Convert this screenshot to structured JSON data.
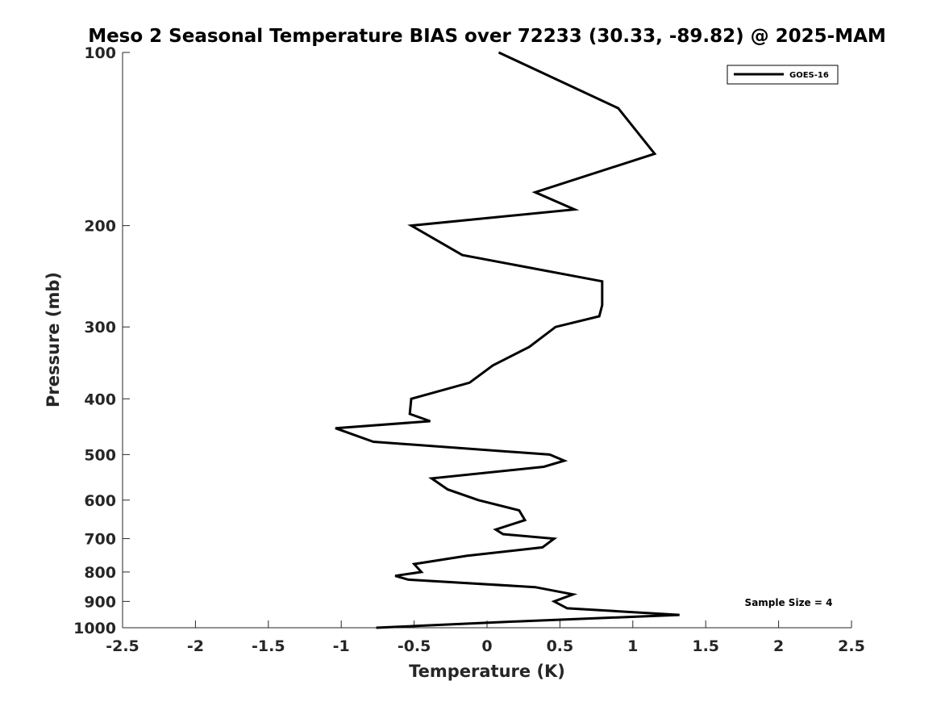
{
  "chart_data": {
    "type": "line",
    "title": "Meso 2 Seasonal Temperature BIAS over 72233 (30.33, -89.82) @ 2025-MAM",
    "xlabel": "Temperature (K)",
    "ylabel": "Pressure (mb)",
    "xlim": [
      -2.5,
      2.5
    ],
    "ylim": [
      100,
      1000
    ],
    "yscale": "log",
    "y_reversed": true,
    "xticks": [
      -2.5,
      -2,
      -1.5,
      -1,
      -0.5,
      0,
      0.5,
      1,
      1.5,
      2,
      2.5
    ],
    "xtick_labels": [
      "-2.5",
      "-2",
      "-1.5",
      "-1",
      "-0.5",
      "0",
      "0.5",
      "1",
      "1.5",
      "2",
      "2.5"
    ],
    "yticks": [
      100,
      200,
      300,
      400,
      500,
      600,
      700,
      800,
      900,
      1000
    ],
    "ytick_labels": [
      "100",
      "200",
      "300",
      "400",
      "500",
      "600",
      "700",
      "800",
      "900",
      "1000"
    ],
    "grid": false,
    "legend_position": "top-right",
    "series": [
      {
        "name": "GOES-16",
        "color": "#000000",
        "points": [
          {
            "x": 0.08,
            "p": 100
          },
          {
            "x": 0.9,
            "p": 125
          },
          {
            "x": 1.15,
            "p": 150
          },
          {
            "x": 0.33,
            "p": 175
          },
          {
            "x": 0.6,
            "p": 187.5
          },
          {
            "x": -0.52,
            "p": 200
          },
          {
            "x": -0.17,
            "p": 225
          },
          {
            "x": 0.79,
            "p": 250
          },
          {
            "x": 0.79,
            "p": 275
          },
          {
            "x": 0.77,
            "p": 287.5
          },
          {
            "x": 0.47,
            "p": 300
          },
          {
            "x": 0.29,
            "p": 325
          },
          {
            "x": 0.04,
            "p": 350
          },
          {
            "x": -0.12,
            "p": 375
          },
          {
            "x": -0.52,
            "p": 400
          },
          {
            "x": -0.53,
            "p": 425
          },
          {
            "x": -0.39,
            "p": 437.5
          },
          {
            "x": -1.04,
            "p": 450
          },
          {
            "x": -0.78,
            "p": 475
          },
          {
            "x": 0.43,
            "p": 500
          },
          {
            "x": 0.53,
            "p": 512.5
          },
          {
            "x": 0.39,
            "p": 525
          },
          {
            "x": -0.38,
            "p": 550
          },
          {
            "x": -0.27,
            "p": 575
          },
          {
            "x": -0.06,
            "p": 600
          },
          {
            "x": 0.22,
            "p": 625
          },
          {
            "x": 0.26,
            "p": 650
          },
          {
            "x": 0.06,
            "p": 675
          },
          {
            "x": 0.11,
            "p": 687.5
          },
          {
            "x": 0.46,
            "p": 700
          },
          {
            "x": 0.38,
            "p": 725
          },
          {
            "x": -0.14,
            "p": 750
          },
          {
            "x": -0.5,
            "p": 775
          },
          {
            "x": -0.45,
            "p": 800
          },
          {
            "x": -0.63,
            "p": 812.5
          },
          {
            "x": -0.54,
            "p": 825
          },
          {
            "x": 0.33,
            "p": 850
          },
          {
            "x": 0.59,
            "p": 875
          },
          {
            "x": 0.46,
            "p": 900
          },
          {
            "x": 0.55,
            "p": 925
          },
          {
            "x": 1.32,
            "p": 950
          },
          {
            "x": 0.2,
            "p": 975
          },
          {
            "x": -0.76,
            "p": 1000
          }
        ]
      }
    ],
    "annotations": [
      {
        "text": "Sample Size = 4",
        "position": "bottom-right"
      }
    ]
  }
}
